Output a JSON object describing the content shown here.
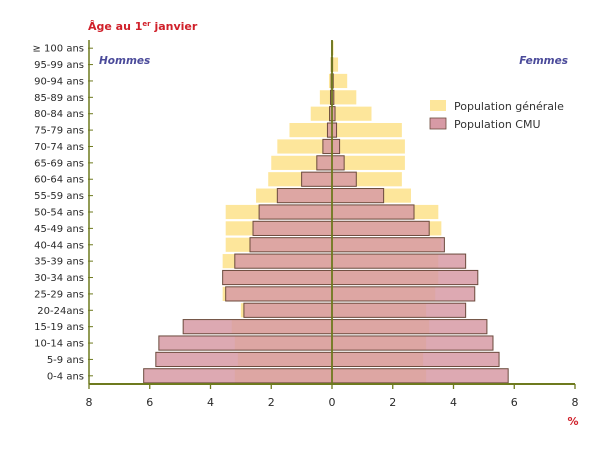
{
  "chart_data": {
    "type": "bar",
    "orientation": "horizontal-pyramid",
    "title": "Âge au 1er janvier",
    "left_label": "Hommes",
    "right_label": "Femmes",
    "xlabel": "%",
    "xlim": [
      -8,
      8
    ],
    "x_ticks": [
      "8",
      "6",
      "4",
      "2",
      "0",
      "2",
      "4",
      "6",
      "8"
    ],
    "legend_position": "top-right",
    "colors": {
      "general": "#fde69b",
      "cmu": "#d79aa5",
      "edge": "#6b4a3c",
      "axis": "#6e7a1e"
    },
    "categories": [
      "0-4 ans",
      "5-9 ans",
      "10-14 ans",
      "15-19 ans",
      "20-24ans",
      "25-29 ans",
      "30-34 ans",
      "35-39 ans",
      "40-44 ans",
      "45-49 ans",
      "50-54 ans",
      "55-59 ans",
      "60-64 ans",
      "65-69 ans",
      "70-74 ans",
      "75-79 ans",
      "80-84 ans",
      "85-89 ans",
      "90-94 ans",
      "95-99 ans",
      "≥ 100 ans"
    ],
    "series": [
      {
        "name": "Population générale",
        "color": "#fde69b",
        "men": [
          3.2,
          3.1,
          3.2,
          3.3,
          3.0,
          3.6,
          3.6,
          3.6,
          3.5,
          3.5,
          3.5,
          2.5,
          2.1,
          2.0,
          1.8,
          1.4,
          0.7,
          0.4,
          0.1,
          0.05,
          0.02
        ],
        "women": [
          3.1,
          3.0,
          3.1,
          3.2,
          3.1,
          3.4,
          3.5,
          3.5,
          3.6,
          3.6,
          3.5,
          2.6,
          2.3,
          2.4,
          2.4,
          2.3,
          1.3,
          0.8,
          0.5,
          0.2,
          0.05
        ]
      },
      {
        "name": "Population CMU",
        "color": "#d79aa5",
        "men": [
          6.2,
          5.8,
          5.7,
          4.9,
          2.9,
          3.5,
          3.6,
          3.2,
          2.7,
          2.6,
          2.4,
          1.8,
          1.0,
          0.5,
          0.3,
          0.15,
          0.08,
          0.05,
          0.03,
          0.02,
          0.01
        ],
        "women": [
          5.8,
          5.5,
          5.3,
          5.1,
          4.4,
          4.7,
          4.8,
          4.4,
          3.7,
          3.2,
          2.7,
          1.7,
          0.8,
          0.4,
          0.25,
          0.15,
          0.1,
          0.06,
          0.04,
          0.02,
          0.01
        ]
      }
    ]
  }
}
